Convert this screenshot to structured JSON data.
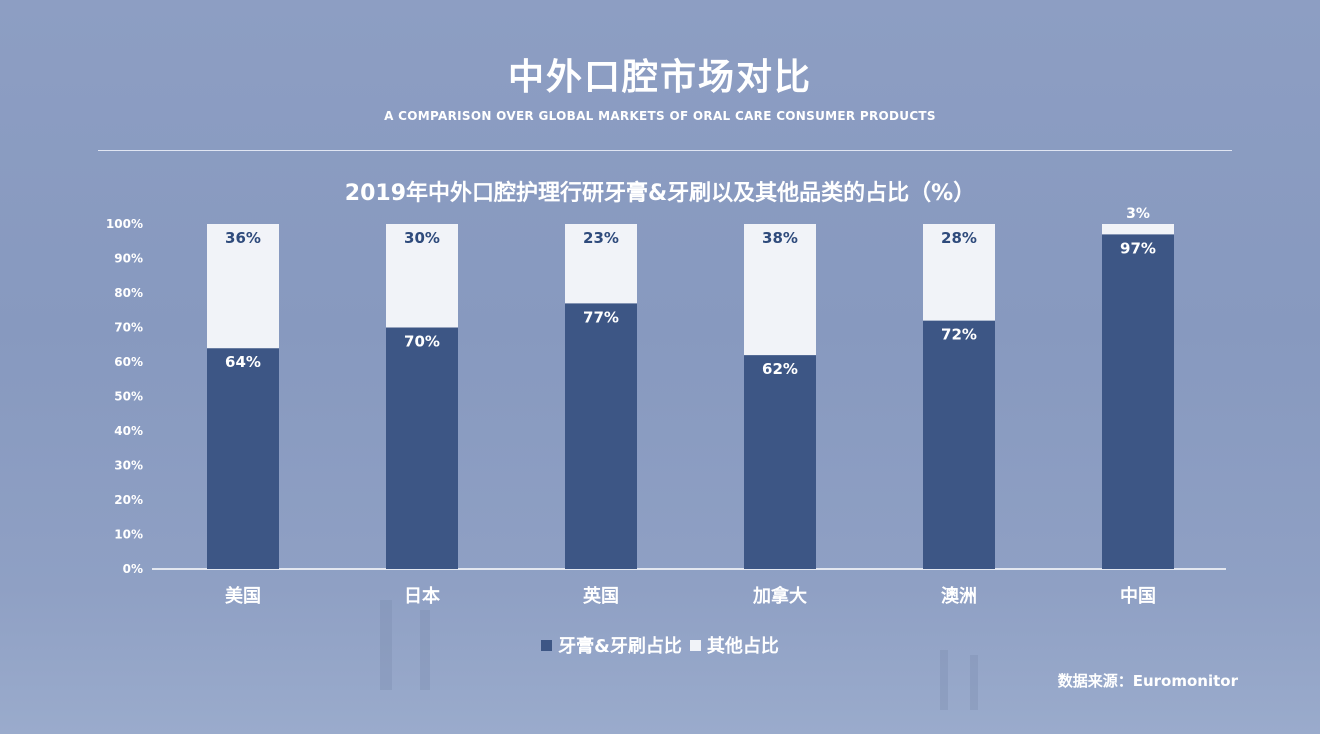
{
  "header": {
    "title": "中外口腔市场对比",
    "subtitle": "A COMPARISON OVER GLOBAL MARKETS OF ORAL CARE CONSUMER PRODUCTS"
  },
  "colors": {
    "series_primary": "#3d5685",
    "series_secondary": "#f1f3f8"
  },
  "chart_data": {
    "type": "bar",
    "stacked": true,
    "title": "2019年中外口腔护理行研牙膏&牙刷以及其他品类的占比（%）",
    "categories": [
      "美国",
      "日本",
      "英国",
      "加拿大",
      "澳洲",
      "中国"
    ],
    "series": [
      {
        "name": "牙膏&牙刷占比",
        "values": [
          64,
          70,
          77,
          62,
          72,
          97
        ]
      },
      {
        "name": "其他占比",
        "values": [
          36,
          30,
          23,
          38,
          28,
          3
        ]
      }
    ],
    "ylim": [
      0,
      100
    ],
    "yticks": [
      "0%",
      "10%",
      "20%",
      "30%",
      "40%",
      "50%",
      "60%",
      "70%",
      "80%",
      "90%",
      "100%"
    ],
    "value_suffix": "%",
    "grid": false,
    "legend_position": "bottom"
  },
  "source": "数据来源：Euromonitor"
}
